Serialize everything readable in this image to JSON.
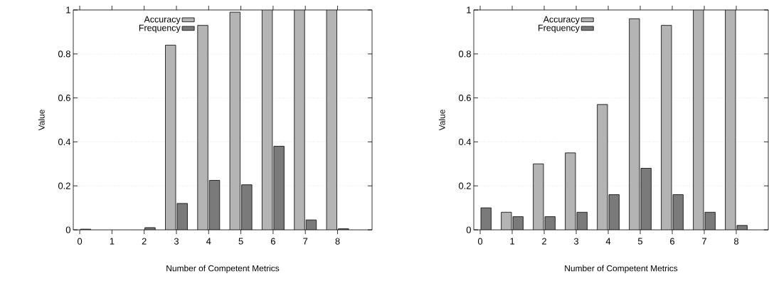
{
  "chart_data": [
    {
      "type": "bar",
      "xlabel": "Number of Competent Metrics",
      "ylabel": "Value",
      "categories": [
        "0",
        "1",
        "2",
        "3",
        "4",
        "5",
        "6",
        "7",
        "8"
      ],
      "series": [
        {
          "name": "Accuracy",
          "color": "#b4b4b4",
          "values": [
            null,
            null,
            null,
            0.84,
            0.93,
            0.99,
            1,
            1,
            1
          ]
        },
        {
          "name": "Frequency",
          "color": "#7a7a7a",
          "values": [
            0.003,
            null,
            0.01,
            0.12,
            0.225,
            0.205,
            0.38,
            0.045,
            0.005
          ]
        }
      ],
      "ylim": [
        0,
        1
      ],
      "yticks": [
        0,
        0.2,
        0.4,
        0.6,
        0.8,
        1
      ],
      "grid": "y",
      "legend": "top left"
    },
    {
      "type": "bar",
      "xlabel": "Number of Competent Metrics",
      "ylabel": "Value",
      "categories": [
        "0",
        "1",
        "2",
        "3",
        "4",
        "5",
        "6",
        "7",
        "8"
      ],
      "series": [
        {
          "name": "Accuracy",
          "color": "#b4b4b4",
          "values": [
            null,
            0.08,
            0.3,
            0.35,
            0.57,
            0.96,
            0.93,
            1,
            1
          ]
        },
        {
          "name": "Frequency",
          "color": "#7a7a7a",
          "values": [
            0.1,
            0.06,
            0.06,
            0.08,
            0.16,
            0.28,
            0.16,
            0.08,
            0.02
          ]
        }
      ],
      "ylim": [
        0,
        1
      ],
      "yticks": [
        0,
        0.2,
        0.4,
        0.6,
        0.8,
        1
      ],
      "grid": "y",
      "legend": "top left"
    }
  ]
}
